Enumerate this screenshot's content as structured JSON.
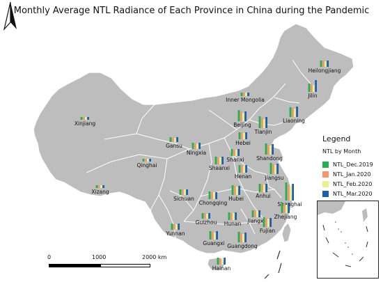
{
  "title": "Monthly Average NTL Radiance of Each Province in China during the Pandemic",
  "legend": {
    "title": "Legend",
    "subtitle": "NTL by Month",
    "items": [
      {
        "label": "NTL_Dec.2019",
        "color": "#22b14c"
      },
      {
        "label": "NTL_Jan.2020",
        "color": "#f5956b"
      },
      {
        "label": "NTL_Feb.2020",
        "color": "#eef08c"
      },
      {
        "label": "NTL_Mar.2020",
        "color": "#1c5fb0"
      }
    ]
  },
  "scale_bar": {
    "labels": [
      "0",
      "1000",
      "2000 km"
    ]
  },
  "map_colors": {
    "land": "#bdbdbd",
    "border": "#ffffff",
    "sea": "#ffffff"
  },
  "provinces": [
    {
      "name": "Heilongjiang",
      "values": [
        9,
        9,
        8,
        9
      ]
    },
    {
      "name": "Jilin",
      "values": [
        12,
        11,
        10,
        17
      ]
    },
    {
      "name": "Liaoning",
      "values": [
        14,
        13,
        12,
        15
      ]
    },
    {
      "name": "Inner Mongolia",
      "values": [
        5,
        5,
        5,
        5
      ]
    },
    {
      "name": "Xinjiang",
      "values": [
        4,
        4,
        4,
        4
      ]
    },
    {
      "name": "Beijing",
      "values": [
        16,
        14,
        12,
        14
      ]
    },
    {
      "name": "Tianjin",
      "values": [
        17,
        15,
        13,
        16
      ]
    },
    {
      "name": "Hebei",
      "values": [
        10,
        10,
        9,
        10
      ]
    },
    {
      "name": "Gansu",
      "values": [
        7,
        6,
        6,
        7
      ]
    },
    {
      "name": "Qinghai",
      "values": [
        4,
        4,
        4,
        4
      ]
    },
    {
      "name": "Ningxia",
      "values": [
        9,
        8,
        8,
        9
      ]
    },
    {
      "name": "Shanxi",
      "values": [
        10,
        9,
        9,
        10
      ]
    },
    {
      "name": "Shandong",
      "values": [
        16,
        14,
        13,
        15
      ]
    },
    {
      "name": "Shaanxi",
      "values": [
        11,
        10,
        10,
        11
      ]
    },
    {
      "name": "Henan",
      "values": [
        11,
        11,
        10,
        11
      ]
    },
    {
      "name": "Jiangsu",
      "values": [
        16,
        14,
        13,
        15
      ]
    },
    {
      "name": "Xizang",
      "values": [
        4,
        4,
        4,
        4
      ]
    },
    {
      "name": "Sichuan",
      "values": [
        8,
        8,
        8,
        8
      ]
    },
    {
      "name": "Chongqing",
      "values": [
        11,
        10,
        10,
        10
      ]
    },
    {
      "name": "Hubei",
      "values": [
        14,
        13,
        12,
        13
      ]
    },
    {
      "name": "Anhui",
      "values": [
        12,
        11,
        11,
        12
      ]
    },
    {
      "name": "Shanghai",
      "values": [
        26,
        23,
        21,
        24
      ]
    },
    {
      "name": "Guizhou",
      "values": [
        8,
        8,
        7,
        8
      ]
    },
    {
      "name": "Hunan",
      "values": [
        11,
        10,
        10,
        11
      ]
    },
    {
      "name": "Jiangxi",
      "values": [
        10,
        10,
        9,
        10
      ]
    },
    {
      "name": "Zhejiang",
      "values": [
        15,
        13,
        12,
        15
      ]
    },
    {
      "name": "Fujian",
      "values": [
        14,
        13,
        12,
        13
      ]
    },
    {
      "name": "Yunnan",
      "values": [
        9,
        8,
        8,
        9
      ]
    },
    {
      "name": "Guangxi",
      "values": [
        12,
        11,
        10,
        12
      ]
    },
    {
      "name": "Guangdong",
      "values": [
        15,
        14,
        12,
        14
      ]
    },
    {
      "name": "Hainan",
      "values": [
        10,
        9,
        9,
        10
      ]
    }
  ]
}
